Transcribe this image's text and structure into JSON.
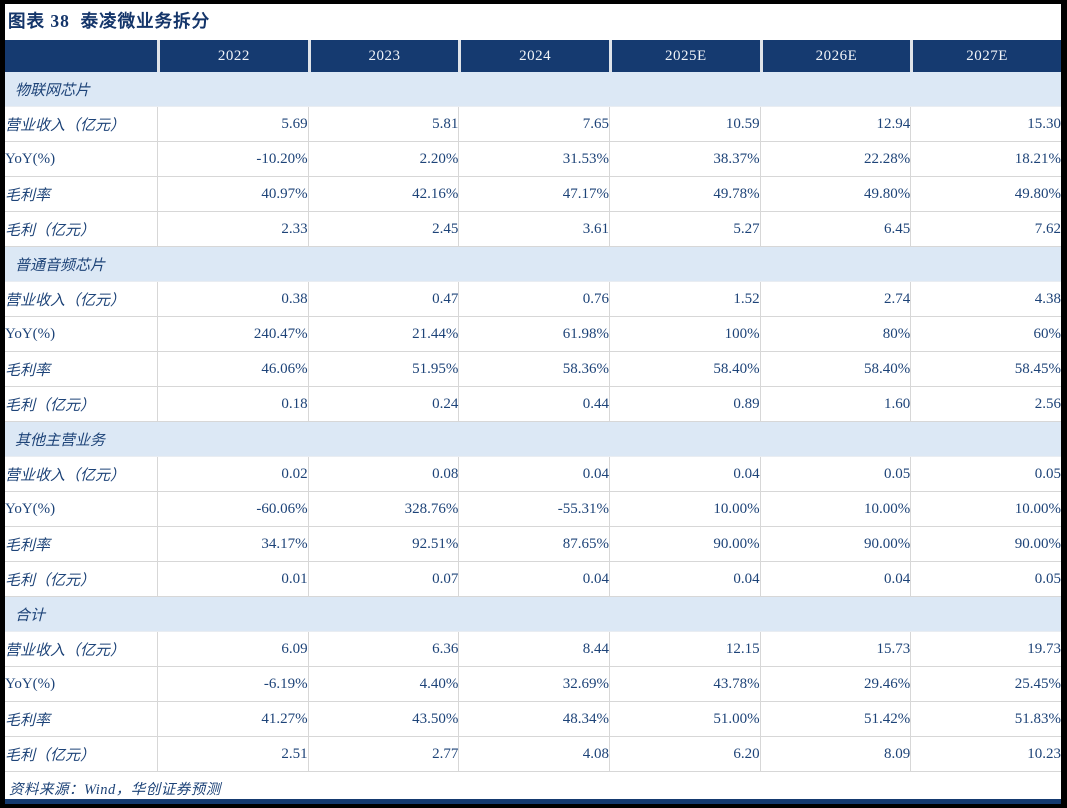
{
  "figure": {
    "title": "图表 38  泰凌微业务拆分"
  },
  "table": {
    "columns": [
      "2022",
      "2023",
      "2024",
      "2025E",
      "2026E",
      "2027E"
    ],
    "sections": [
      {
        "name": "物联网芯片",
        "rows": [
          {
            "label": "营业收入（亿元）",
            "values": [
              "5.69",
              "5.81",
              "7.65",
              "10.59",
              "12.94",
              "15.30"
            ]
          },
          {
            "label": "YoY(%)",
            "values": [
              "-10.20%",
              "2.20%",
              "31.53%",
              "38.37%",
              "22.28%",
              "18.21%"
            ]
          },
          {
            "label": "毛利率",
            "values": [
              "40.97%",
              "42.16%",
              "47.17%",
              "49.78%",
              "49.80%",
              "49.80%"
            ]
          },
          {
            "label": "毛利（亿元）",
            "values": [
              "2.33",
              "2.45",
              "3.61",
              "5.27",
              "6.45",
              "7.62"
            ]
          }
        ]
      },
      {
        "name": "普通音频芯片",
        "rows": [
          {
            "label": "营业收入（亿元）",
            "values": [
              "0.38",
              "0.47",
              "0.76",
              "1.52",
              "2.74",
              "4.38"
            ]
          },
          {
            "label": "YoY(%)",
            "values": [
              "240.47%",
              "21.44%",
              "61.98%",
              "100%",
              "80%",
              "60%"
            ]
          },
          {
            "label": "毛利率",
            "values": [
              "46.06%",
              "51.95%",
              "58.36%",
              "58.40%",
              "58.40%",
              "58.45%"
            ]
          },
          {
            "label": "毛利（亿元）",
            "values": [
              "0.18",
              "0.24",
              "0.44",
              "0.89",
              "1.60",
              "2.56"
            ]
          }
        ]
      },
      {
        "name": "其他主营业务",
        "rows": [
          {
            "label": "营业收入（亿元）",
            "values": [
              "0.02",
              "0.08",
              "0.04",
              "0.04",
              "0.05",
              "0.05"
            ]
          },
          {
            "label": "YoY(%)",
            "values": [
              "-60.06%",
              "328.76%",
              "-55.31%",
              "10.00%",
              "10.00%",
              "10.00%"
            ]
          },
          {
            "label": "毛利率",
            "values": [
              "34.17%",
              "92.51%",
              "87.65%",
              "90.00%",
              "90.00%",
              "90.00%"
            ]
          },
          {
            "label": "毛利（亿元）",
            "values": [
              "0.01",
              "0.07",
              "0.04",
              "0.04",
              "0.04",
              "0.05"
            ]
          }
        ]
      },
      {
        "name": "合计",
        "rows": [
          {
            "label": "营业收入（亿元）",
            "values": [
              "6.09",
              "6.36",
              "8.44",
              "12.15",
              "15.73",
              "19.73"
            ]
          },
          {
            "label": "YoY(%)",
            "values": [
              "-6.19%",
              "4.40%",
              "32.69%",
              "43.78%",
              "29.46%",
              "25.45%"
            ]
          },
          {
            "label": "毛利率",
            "values": [
              "41.27%",
              "43.50%",
              "48.34%",
              "51.00%",
              "51.42%",
              "51.83%"
            ]
          },
          {
            "label": "毛利（亿元）",
            "values": [
              "2.51",
              "2.77",
              "4.08",
              "6.20",
              "8.09",
              "10.23"
            ]
          }
        ]
      }
    ]
  },
  "footer": {
    "source": "资料来源：Wind，华创证券预测"
  },
  "colors": {
    "header_bg": "#153A70",
    "band_bg": "#DCE8F5",
    "text": "#1D4378",
    "title": "#14356A",
    "border": "#D7D7D7"
  }
}
